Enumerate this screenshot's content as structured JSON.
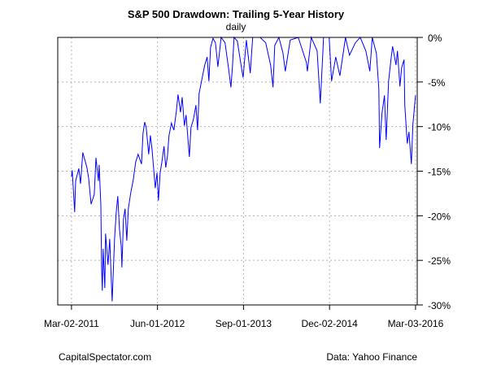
{
  "chart_data": {
    "type": "line",
    "title": "S&P 500 Drawdown: Trailing 5-Year History",
    "subtitle": "daily",
    "xlabel": "",
    "ylabel": "",
    "xlim": [
      "2010-12-19",
      "2016-03-12"
    ],
    "ylim": [
      -30,
      0
    ],
    "x_ticks": [
      {
        "date": "2011-03-02",
        "label": "Mar-02-2011"
      },
      {
        "date": "2012-06-01",
        "label": "Jun-01-2012"
      },
      {
        "date": "2013-09-01",
        "label": "Sep-01-2013"
      },
      {
        "date": "2014-12-02",
        "label": "Dec-02-2014"
      },
      {
        "date": "2016-03-03",
        "label": "Mar-03-2016"
      }
    ],
    "y_ticks": [
      {
        "value": 0,
        "label": "0%"
      },
      {
        "value": -5,
        "label": "-5%"
      },
      {
        "value": -10,
        "label": "-10%"
      },
      {
        "value": -15,
        "label": "-15%"
      },
      {
        "value": -20,
        "label": "-20%"
      },
      {
        "value": -25,
        "label": "-25%"
      },
      {
        "value": -30,
        "label": "-30%"
      }
    ],
    "y_axis_side": "right",
    "grid": true,
    "line_color": "#0000ff",
    "grid_color": "#b4b4b4",
    "series": [
      {
        "points": [
          [
            "2011-03-02",
            -15.6
          ],
          [
            "2011-03-06",
            -14.9
          ],
          [
            "2011-03-19",
            -19.6
          ],
          [
            "2011-03-24",
            -16.1
          ],
          [
            "2011-04-10",
            -14.7
          ],
          [
            "2011-04-19",
            -16.4
          ],
          [
            "2011-05-01",
            -12.9
          ],
          [
            "2011-05-23",
            -14.6
          ],
          [
            "2011-06-01",
            -15.8
          ],
          [
            "2011-06-14",
            -18.7
          ],
          [
            "2011-07-01",
            -17.6
          ],
          [
            "2011-07-10",
            -13.5
          ],
          [
            "2011-07-23",
            -16.1
          ],
          [
            "2011-07-27",
            -14.3
          ],
          [
            "2011-08-05",
            -18.8
          ],
          [
            "2011-08-09",
            -25.8
          ],
          [
            "2011-08-13",
            -28.4
          ],
          [
            "2011-08-17",
            -23.7
          ],
          [
            "2011-08-26",
            -28.1
          ],
          [
            "2011-08-30",
            -22.0
          ],
          [
            "2011-09-12",
            -25.5
          ],
          [
            "2011-09-21",
            -22.6
          ],
          [
            "2011-09-30",
            -27.6
          ],
          [
            "2011-10-04",
            -29.6
          ],
          [
            "2011-10-17",
            -22.5
          ],
          [
            "2011-10-26",
            -19.5
          ],
          [
            "2011-11-03",
            -17.8
          ],
          [
            "2011-11-12",
            -21.5
          ],
          [
            "2011-11-21",
            -23.4
          ],
          [
            "2011-11-25",
            -25.8
          ],
          [
            "2011-12-03",
            -20.4
          ],
          [
            "2011-12-12",
            -19.2
          ],
          [
            "2011-12-21",
            -22.8
          ],
          [
            "2011-12-29",
            -19.2
          ],
          [
            "2012-01-11",
            -17.4
          ],
          [
            "2012-01-24",
            -16.0
          ],
          [
            "2012-01-29",
            -15.2
          ],
          [
            "2012-02-06",
            -14.0
          ],
          [
            "2012-02-19",
            -13.1
          ],
          [
            "2012-03-08",
            -14.2
          ],
          [
            "2012-03-16",
            -10.8
          ],
          [
            "2012-03-25",
            -9.5
          ],
          [
            "2012-04-02",
            -10.1
          ],
          [
            "2012-04-15",
            -13.1
          ],
          [
            "2012-04-24",
            -11.0
          ],
          [
            "2012-05-03",
            -12.5
          ],
          [
            "2012-05-20",
            -16.9
          ],
          [
            "2012-05-29",
            -15.2
          ],
          [
            "2012-06-06",
            -18.3
          ],
          [
            "2012-06-15",
            -15.2
          ],
          [
            "2012-06-24",
            -14.0
          ],
          [
            "2012-07-06",
            -12.2
          ],
          [
            "2012-07-15",
            -14.6
          ],
          [
            "2012-07-24",
            -13.3
          ],
          [
            "2012-08-01",
            -11.0
          ],
          [
            "2012-08-14",
            -9.6
          ],
          [
            "2012-08-27",
            -10.4
          ],
          [
            "2012-09-09",
            -8.3
          ],
          [
            "2012-09-18",
            -6.4
          ],
          [
            "2012-10-01",
            -8.4
          ],
          [
            "2012-10-10",
            -6.7
          ],
          [
            "2012-10-22",
            -9.9
          ],
          [
            "2012-10-31",
            -8.7
          ],
          [
            "2012-11-17",
            -13.4
          ],
          [
            "2012-11-26",
            -10.1
          ],
          [
            "2012-12-09",
            -9.2
          ],
          [
            "2012-12-22",
            -7.6
          ],
          [
            "2012-12-31",
            -10.4
          ],
          [
            "2013-01-08",
            -6.3
          ],
          [
            "2013-01-21",
            -4.9
          ],
          [
            "2013-02-07",
            -3.1
          ],
          [
            "2013-02-20",
            -2.2
          ],
          [
            "2013-03-01",
            -4.9
          ],
          [
            "2013-03-10",
            -1.1
          ],
          [
            "2013-03-23",
            -0.1
          ],
          [
            "2013-04-05",
            -0.6
          ],
          [
            "2013-04-18",
            -3.3
          ],
          [
            "2013-05-05",
            0
          ],
          [
            "2013-05-26",
            -0.6
          ],
          [
            "2013-06-13",
            -3.4
          ],
          [
            "2013-06-26",
            -5.6
          ],
          [
            "2013-07-04",
            -3.3
          ],
          [
            "2013-07-13",
            0
          ],
          [
            "2013-07-30",
            -0.4
          ],
          [
            "2013-08-21",
            -3.4
          ],
          [
            "2013-08-30",
            -4.5
          ],
          [
            "2013-09-16",
            -0.3
          ],
          [
            "2013-10-07",
            -4.0
          ],
          [
            "2013-10-20",
            0
          ],
          [
            "2013-11-28",
            0
          ],
          [
            "2013-12-28",
            -0.6
          ],
          [
            "2014-01-23",
            -3.1
          ],
          [
            "2014-02-05",
            -5.6
          ],
          [
            "2014-02-14",
            -0.9
          ],
          [
            "2014-03-08",
            0
          ],
          [
            "2014-03-29",
            -1.7
          ],
          [
            "2014-04-11",
            -3.8
          ],
          [
            "2014-05-07",
            -0.3
          ],
          [
            "2014-06-19",
            0
          ],
          [
            "2014-08-01",
            -2.8
          ],
          [
            "2014-08-06",
            -3.8
          ],
          [
            "2014-08-27",
            0
          ],
          [
            "2014-09-27",
            -1.5
          ],
          [
            "2014-10-14",
            -7.4
          ],
          [
            "2014-10-27",
            -2.0
          ],
          [
            "2014-10-31",
            0
          ],
          [
            "2014-11-30",
            0
          ],
          [
            "2014-12-13",
            -4.9
          ],
          [
            "2015-01-04",
            -2.2
          ],
          [
            "2015-01-26",
            -4.3
          ],
          [
            "2015-02-25",
            0
          ],
          [
            "2015-03-18",
            -2.0
          ],
          [
            "2015-04-18",
            -0.6
          ],
          [
            "2015-05-14",
            0
          ],
          [
            "2015-06-13",
            -1.5
          ],
          [
            "2015-07-04",
            -3.8
          ],
          [
            "2015-07-17",
            0
          ],
          [
            "2015-08-08",
            -1.8
          ],
          [
            "2015-08-21",
            -5.8
          ],
          [
            "2015-08-25",
            -12.4
          ],
          [
            "2015-09-07",
            -8.5
          ],
          [
            "2015-09-20",
            -6.5
          ],
          [
            "2015-09-29",
            -11.5
          ],
          [
            "2015-10-12",
            -4.9
          ],
          [
            "2015-10-25",
            -2.4
          ],
          [
            "2015-11-02",
            -1.0
          ],
          [
            "2015-11-20",
            -3.1
          ],
          [
            "2015-11-28",
            -1.5
          ],
          [
            "2015-12-11",
            -5.5
          ],
          [
            "2015-12-20",
            -3.4
          ],
          [
            "2016-01-02",
            -2.5
          ],
          [
            "2016-01-06",
            -7.6
          ],
          [
            "2016-01-19",
            -11.9
          ],
          [
            "2016-01-28",
            -10.6
          ],
          [
            "2016-02-10",
            -14.2
          ],
          [
            "2016-02-18",
            -9.7
          ],
          [
            "2016-03-03",
            -6.5
          ]
        ]
      }
    ]
  },
  "footer": {
    "left": "CapitalSpectator.com",
    "right": "Data: Yahoo Finance"
  }
}
